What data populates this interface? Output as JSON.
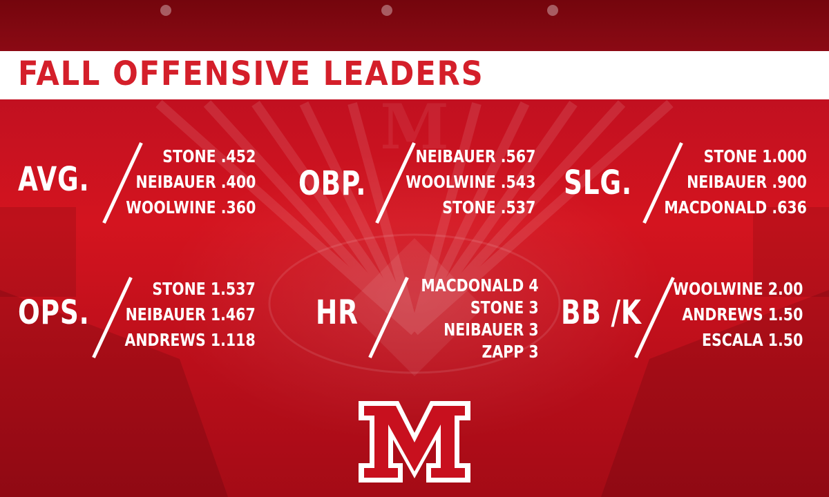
{
  "title": "FALL OFFENSIVE LEADERS",
  "colors": {
    "brand_red": "#c8101e",
    "title_red": "#d41f2a",
    "white": "#ffffff"
  },
  "categories": [
    {
      "label": "AVG.",
      "leaders": [
        "STONE .452",
        "NEIBAUER .400",
        "WOOLWINE .360"
      ]
    },
    {
      "label": "OBP.",
      "leaders": [
        "NEIBAUER .567",
        "WOOLWINE .543",
        "STONE .537"
      ]
    },
    {
      "label": "SLG.",
      "leaders": [
        "STONE 1.000",
        "NEIBAUER .900",
        "MACDONALD .636"
      ]
    },
    {
      "label": "OPS.",
      "leaders": [
        "STONE 1.537",
        "NEIBAUER 1.467",
        "ANDREWS 1.118"
      ]
    },
    {
      "label": "HR",
      "leaders": [
        "MACDONALD 4",
        "STONE 3",
        "NEIBAUER 3",
        "ZAPP 3"
      ]
    },
    {
      "label": "BB /K",
      "leaders": [
        "WOOLWINE 2.00",
        "ANDREWS 1.50",
        "ESCALA 1.50"
      ]
    }
  ],
  "logo_icon": "miami-m-logo-icon"
}
